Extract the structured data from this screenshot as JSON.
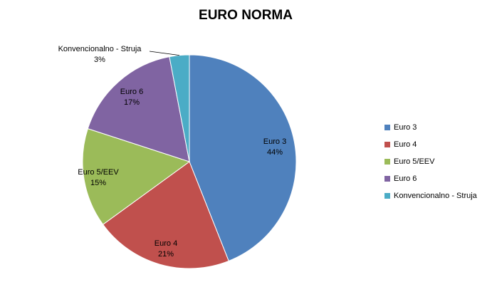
{
  "chart_data": {
    "type": "pie",
    "title": "EURO NORMA",
    "categories": [
      "Euro 3",
      "Euro 4",
      "Euro 5/EEV",
      "Euro 6",
      "Konvencionalno - Struja"
    ],
    "values": [
      44,
      21,
      15,
      17,
      3
    ],
    "value_labels": [
      "44%",
      "21%",
      "15%",
      "17%",
      "3%"
    ],
    "colors": [
      "#4f81bd",
      "#c0504d",
      "#9bbb59",
      "#8064a2",
      "#4bacc6"
    ],
    "legend": "right"
  }
}
